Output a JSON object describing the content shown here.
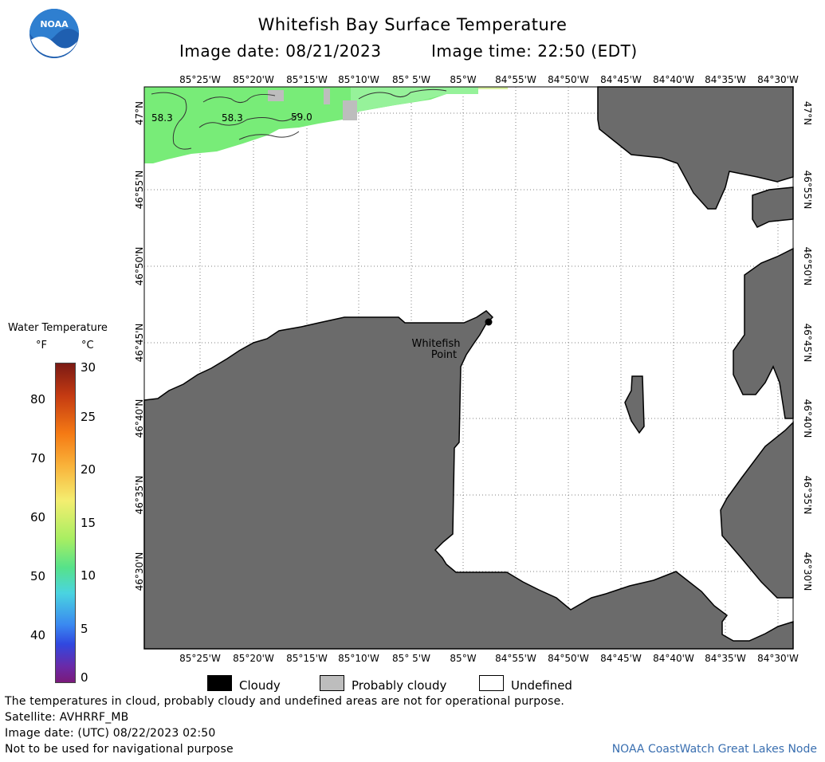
{
  "header": {
    "title": "Whitefish Bay Surface Temperature",
    "image_date_label": "Image date: 08/21/2023",
    "image_time_label": "Image time: 22:50 (EDT)",
    "logo_text": "NOAA"
  },
  "map": {
    "lon_labels": [
      "85°25'W",
      "85°20'W",
      "85°15'W",
      "85°10'W",
      "85° 5'W",
      "85°W",
      "84°55'W",
      "84°50'W",
      "84°45'W",
      "84°40'W",
      "84°35'W",
      "84°30'W"
    ],
    "lat_labels": [
      "47°N",
      "46°55'N",
      "46°50'N",
      "46°45'N",
      "46°40'N",
      "46°35'N",
      "46°30'N"
    ],
    "place_label_line1": "Whitefish",
    "place_label_line2": "Point",
    "contour_labels": [
      "58.3",
      "58.3",
      "59.0"
    ],
    "colors": {
      "land": "#6b6b6b",
      "water_warm": "#6ee86e",
      "water_light": "#8ef08a",
      "probably_cloudy": "#bdbdbd",
      "grid": "#7f7f7f"
    }
  },
  "colorbar": {
    "title": "Water Temperature",
    "unit_f": "°F",
    "unit_c": "°C",
    "f_ticks": [
      "80",
      "70",
      "60",
      "50",
      "40"
    ],
    "c_ticks": [
      "30",
      "25",
      "20",
      "15",
      "10",
      "5",
      "0"
    ]
  },
  "legend": {
    "cloudy": "Cloudy",
    "probably_cloudy": "Probably cloudy",
    "undefined": "Undefined"
  },
  "footer": {
    "line1": "The temperatures in cloud, probably cloudy and undefined areas are not for operational purpose.",
    "line2": "Satellite: AVHRRF_MB",
    "line3": "Image date: (UTC) 08/22/2023  02:50",
    "line4": "Not to be used for navigational purpose",
    "credit": "NOAA CoastWatch Great Lakes Node"
  }
}
